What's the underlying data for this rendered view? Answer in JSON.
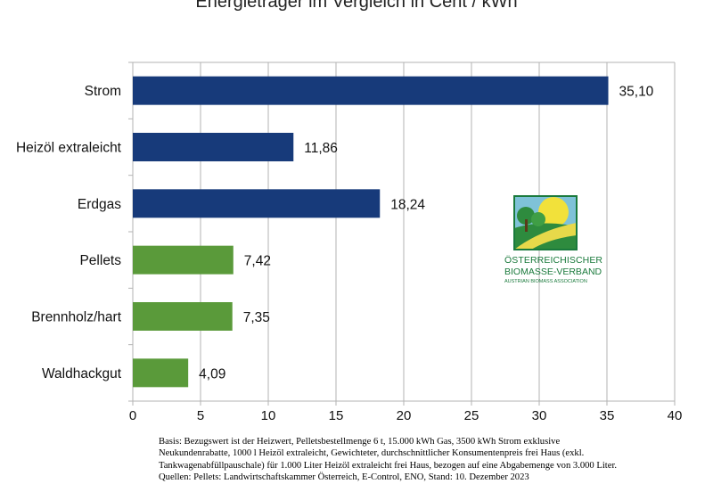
{
  "chart_data": {
    "type": "bar",
    "orientation": "horizontal",
    "title": "Energieträger im Vergleich in Cent / kWh",
    "categories": [
      "Strom",
      "Heizöl extraleicht",
      "Erdgas",
      "Pellets",
      "Brennholz/hart",
      "Waldhackgut"
    ],
    "values": [
      35.1,
      11.86,
      18.24,
      7.42,
      7.35,
      4.09
    ],
    "value_labels": [
      "35,10",
      "11,86",
      "18,24",
      "7,42",
      "7,35",
      "4,09"
    ],
    "bar_colors": [
      "#173a7a",
      "#173a7a",
      "#173a7a",
      "#5a9a3a",
      "#5a9a3a",
      "#5a9a3a"
    ],
    "x_ticks": [
      "0",
      "5",
      "10",
      "15",
      "20",
      "25",
      "30",
      "35",
      "40"
    ],
    "xlim": [
      0,
      40
    ],
    "grid": true,
    "xlabel": "",
    "ylabel": ""
  },
  "logo": {
    "line1": "Österreichischer",
    "line2": "Biomasse-Verband",
    "line3": "Austrian Biomass Association",
    "colors": {
      "text": "#1a7a3c",
      "sun": "#f2e13a",
      "tree": "#2e8b3e",
      "sky": "#7fc2d8",
      "field": "#e7d94a"
    }
  },
  "footnote": {
    "line1": "Basis: Bezugswert ist der Heizwert, Pelletsbestellmenge 6 t, 15.000 kWh Gas, 3500 kWh Strom exklusive",
    "line2": "Neukundenrabatte, 1000 l Heizöl extraleicht, Gewichteter, durchschnittlicher Konsumentenpreis frei Haus (exkl.",
    "line3": "Tankwagenabfüllpauschale) für 1.000 Liter Heizöl extraleicht frei Haus, bezogen auf eine Abgabemenge von 3.000 Liter.",
    "line4": "Quellen: Pellets: Landwirtschaftskammer Österreich, E-Control, ENO, Stand: 10. Dezember 2023"
  }
}
